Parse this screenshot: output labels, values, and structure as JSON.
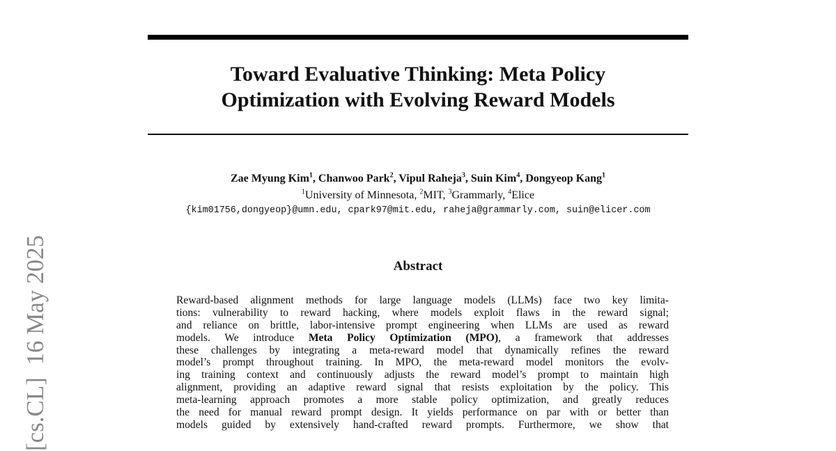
{
  "title": {
    "line1": "Toward Evaluative Thinking: Meta Policy",
    "line2": "Optimization with Evolving Reward Models"
  },
  "authors": [
    {
      "name": "Zae Myung Kim",
      "aff": "1"
    },
    {
      "name": "Chanwoo Park",
      "aff": "2"
    },
    {
      "name": "Vipul Raheja",
      "aff": "3"
    },
    {
      "name": "Suin Kim",
      "aff": "4"
    },
    {
      "name": "Dongyeop Kang",
      "aff": "1"
    }
  ],
  "affiliations": [
    {
      "num": "1",
      "name": "University of Minnesota"
    },
    {
      "num": "2",
      "name": "MIT"
    },
    {
      "num": "3",
      "name": "Grammarly"
    },
    {
      "num": "4",
      "name": "Elice"
    }
  ],
  "emails": "{kim01756,dongyeop}@umn.edu, cpark97@mit.edu, raheja@grammarly.com, suin@elicer.com",
  "abstract": {
    "heading": "Abstract",
    "lines": [
      "Reward-based alignment methods for large language models (LLMs) face two key limita-",
      "tions: vulnerability to reward hacking, where models exploit flaws in the reward signal;",
      "and reliance on brittle, labor-intensive prompt engineering when LLMs are used as reward",
      {
        "pre": "models. We introduce ",
        "bold": "Meta Policy Optimization (MPO)",
        "post": ", a framework that addresses"
      },
      "these challenges by integrating a meta-reward model that dynamically refines the reward",
      "model’s prompt throughout training. In MPO, the meta-reward model monitors the evolv-",
      "ing training context and continuously adjusts the reward model’s prompt to maintain high",
      "alignment, providing an adaptive reward signal that resists exploitation by the policy. This",
      "meta-learning approach promotes a more stable policy optimization, and greatly reduces",
      "the need for manual reward prompt design. It yields performance on par with or better than",
      "models guided by extensively hand-crafted reward prompts. Furthermore, we show that"
    ]
  },
  "arxiv_stamp": "[cs.CL]  16 May 2025"
}
